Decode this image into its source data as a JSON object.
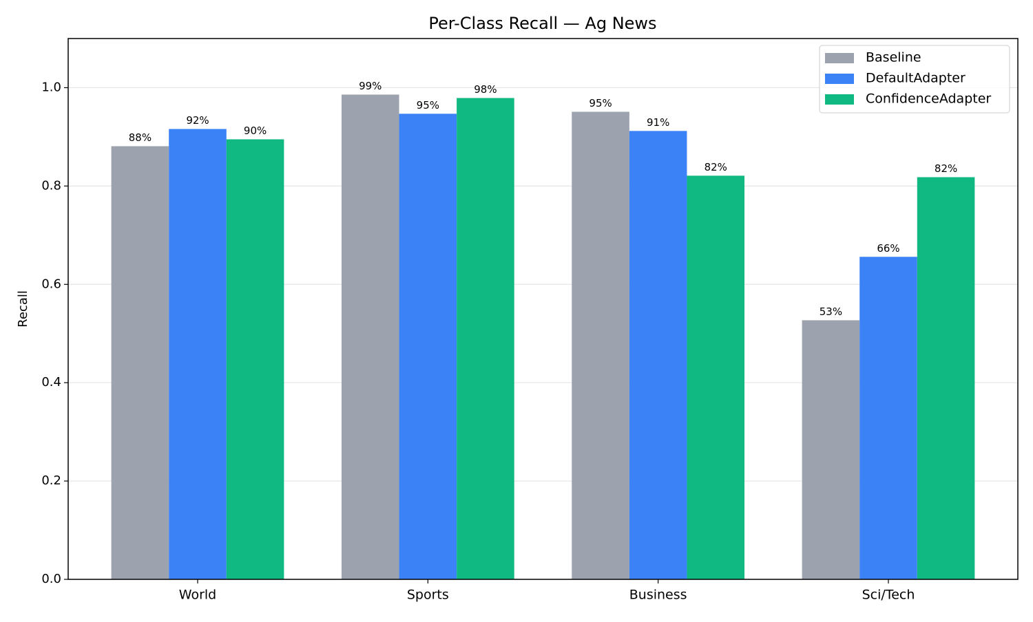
{
  "chart_data": {
    "type": "bar",
    "title": "Per-Class Recall — Ag News",
    "y_label": "Recall",
    "categories": [
      "World",
      "Sports",
      "Business",
      "Sci/Tech"
    ],
    "series": [
      {
        "name": "Baseline",
        "color": "#9ca3af",
        "values": [
          0.881,
          0.986,
          0.951,
          0.527
        ],
        "value_labels": [
          "88%",
          "99%",
          "95%",
          "53%"
        ]
      },
      {
        "name": "DefaultAdapter",
        "color": "#3b82f6",
        "values": [
          0.916,
          0.947,
          0.912,
          0.656
        ],
        "value_labels": [
          "92%",
          "95%",
          "91%",
          "66%"
        ]
      },
      {
        "name": "ConfidenceAdapter",
        "color": "#10b981",
        "values": [
          0.895,
          0.979,
          0.821,
          0.818
        ],
        "value_labels": [
          "90%",
          "98%",
          "82%",
          "82%"
        ]
      }
    ],
    "ylim": [
      0,
      1.1
    ],
    "yticks": [
      {
        "value": 0,
        "label": "0.0"
      },
      {
        "value": 0.2,
        "label": "0.2"
      },
      {
        "value": 0.4,
        "label": "0.4"
      },
      {
        "value": 0.6,
        "label": "0.6"
      },
      {
        "value": 0.8,
        "label": "0.8"
      },
      {
        "value": 1.0,
        "label": "1.0"
      }
    ],
    "grid": true,
    "legend": "upper right"
  }
}
